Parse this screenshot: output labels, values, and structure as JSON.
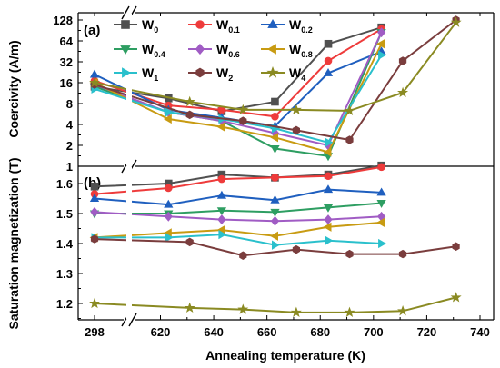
{
  "chart_data": [
    {
      "panel": "(a)",
      "type": "line",
      "xlabel": "",
      "ylabel": "Coercivity (A/m)",
      "yscale": "log2",
      "ylim": [
        1,
        128
      ],
      "yticks": [
        1,
        2,
        4,
        8,
        16,
        32,
        64,
        128
      ],
      "ytick_labels": [
        "1",
        "2",
        "4",
        "8",
        "16",
        "32",
        "64",
        "128"
      ],
      "legend_position": "top",
      "legend": [
        {
          "base": "W",
          "sub": "0"
        },
        {
          "base": "W",
          "sub": "0.1"
        },
        {
          "base": "W",
          "sub": "0.2"
        },
        {
          "base": "W",
          "sub": "0.4"
        },
        {
          "base": "W",
          "sub": "0.6"
        },
        {
          "base": "W",
          "sub": "0.8"
        },
        {
          "base": "W",
          "sub": "1"
        },
        {
          "base": "W",
          "sub": "2"
        },
        {
          "base": "W",
          "sub": "4"
        }
      ],
      "series": [
        {
          "name": "W0",
          "color": "#505050",
          "marker": "square",
          "x": [
            298,
            623,
            643,
            663,
            683,
            703
          ],
          "y": [
            14,
            9.5,
            6.2,
            8.5,
            58,
            100
          ]
        },
        {
          "name": "W0.1",
          "color": "#ee3b3b",
          "marker": "circle",
          "x": [
            298,
            623,
            643,
            663,
            683,
            703
          ],
          "y": [
            17,
            7.5,
            6.5,
            5.2,
            33,
            95
          ]
        },
        {
          "name": "W0.2",
          "color": "#1f5fbf",
          "marker": "triangle-up",
          "x": [
            298,
            623,
            643,
            663,
            683,
            703
          ],
          "y": [
            21,
            6.5,
            5,
            3.8,
            22,
            45
          ]
        },
        {
          "name": "W0.4",
          "color": "#2e9e62",
          "marker": "triangle-down",
          "x": [
            298,
            623,
            643,
            663,
            683,
            703
          ],
          "y": [
            14,
            6,
            4.5,
            1.8,
            1.4,
            85
          ]
        },
        {
          "name": "W0.6",
          "color": "#a05cc4",
          "marker": "diamond",
          "x": [
            298,
            623,
            643,
            663,
            683,
            703
          ],
          "y": [
            15,
            6,
            4.5,
            3,
            2,
            85
          ]
        },
        {
          "name": "W0.8",
          "color": "#c89b12",
          "marker": "triangle-left",
          "x": [
            298,
            623,
            643,
            663,
            683,
            703
          ],
          "y": [
            16,
            4.8,
            3.7,
            2.6,
            1.6,
            58
          ]
        },
        {
          "name": "W1",
          "color": "#2ac0cc",
          "marker": "triangle-right",
          "x": [
            298,
            623,
            643,
            663,
            683,
            703
          ],
          "y": [
            13,
            6,
            4.8,
            3.5,
            2.2,
            40
          ]
        },
        {
          "name": "W2",
          "color": "#7a3d3d",
          "marker": "hexagon",
          "x": [
            298,
            631,
            651,
            671,
            691,
            711,
            731
          ],
          "y": [
            15,
            5.5,
            4.5,
            3.3,
            2.4,
            33,
            128
          ]
        },
        {
          "name": "W4",
          "color": "#8a8a22",
          "marker": "star",
          "x": [
            298,
            631,
            651,
            671,
            691,
            711,
            731
          ],
          "y": [
            16,
            8.5,
            6.5,
            6.5,
            6.3,
            11.5,
            118
          ]
        }
      ]
    },
    {
      "panel": "(b)",
      "type": "line",
      "xlabel": "Annealing temperature (K)",
      "ylabel": "Saturation magnetization (T)",
      "ylim": [
        1.13,
        1.65
      ],
      "yticks": [
        1.2,
        1.3,
        1.4,
        1.5,
        1.6
      ],
      "ytick_labels": [
        "1.2",
        "1.3",
        "1.4",
        "1.5",
        "1.6"
      ],
      "xticks": [
        298,
        620,
        640,
        660,
        680,
        700,
        720,
        740
      ],
      "xtick_labels": [
        "298",
        "620",
        "640",
        "660",
        "680",
        "700",
        "720",
        "740"
      ],
      "series": [
        {
          "name": "W0",
          "x": [
            298,
            623,
            643,
            663,
            683,
            703
          ],
          "y": [
            1.59,
            1.6,
            1.63,
            1.62,
            1.63,
            1.66
          ]
        },
        {
          "name": "W0.1",
          "x": [
            298,
            623,
            643,
            663,
            683,
            703
          ],
          "y": [
            1.565,
            1.585,
            1.615,
            1.62,
            1.625,
            1.655
          ]
        },
        {
          "name": "W0.2",
          "x": [
            298,
            623,
            643,
            663,
            683,
            703
          ],
          "y": [
            1.55,
            1.53,
            1.56,
            1.545,
            1.58,
            1.57
          ]
        },
        {
          "name": "W0.4",
          "x": [
            298,
            623,
            643,
            663,
            683,
            703
          ],
          "y": [
            1.5,
            1.5,
            1.51,
            1.505,
            1.52,
            1.535
          ]
        },
        {
          "name": "W0.6",
          "x": [
            298,
            623,
            643,
            663,
            683,
            703
          ],
          "y": [
            1.505,
            1.49,
            1.48,
            1.475,
            1.48,
            1.49
          ]
        },
        {
          "name": "W0.8",
          "x": [
            298,
            623,
            643,
            663,
            683,
            703
          ],
          "y": [
            1.42,
            1.435,
            1.445,
            1.425,
            1.455,
            1.47
          ]
        },
        {
          "name": "W1",
          "x": [
            298,
            623,
            643,
            663,
            683,
            703
          ],
          "y": [
            1.42,
            1.42,
            1.43,
            1.395,
            1.41,
            1.4
          ]
        },
        {
          "name": "W2",
          "x": [
            298,
            631,
            651,
            671,
            691,
            711,
            731
          ],
          "y": [
            1.415,
            1.405,
            1.36,
            1.38,
            1.365,
            1.365,
            1.39
          ]
        },
        {
          "name": "W4",
          "x": [
            298,
            631,
            651,
            671,
            691,
            711,
            731
          ],
          "y": [
            1.2,
            1.185,
            1.18,
            1.17,
            1.17,
            1.175,
            1.22
          ]
        }
      ]
    }
  ]
}
